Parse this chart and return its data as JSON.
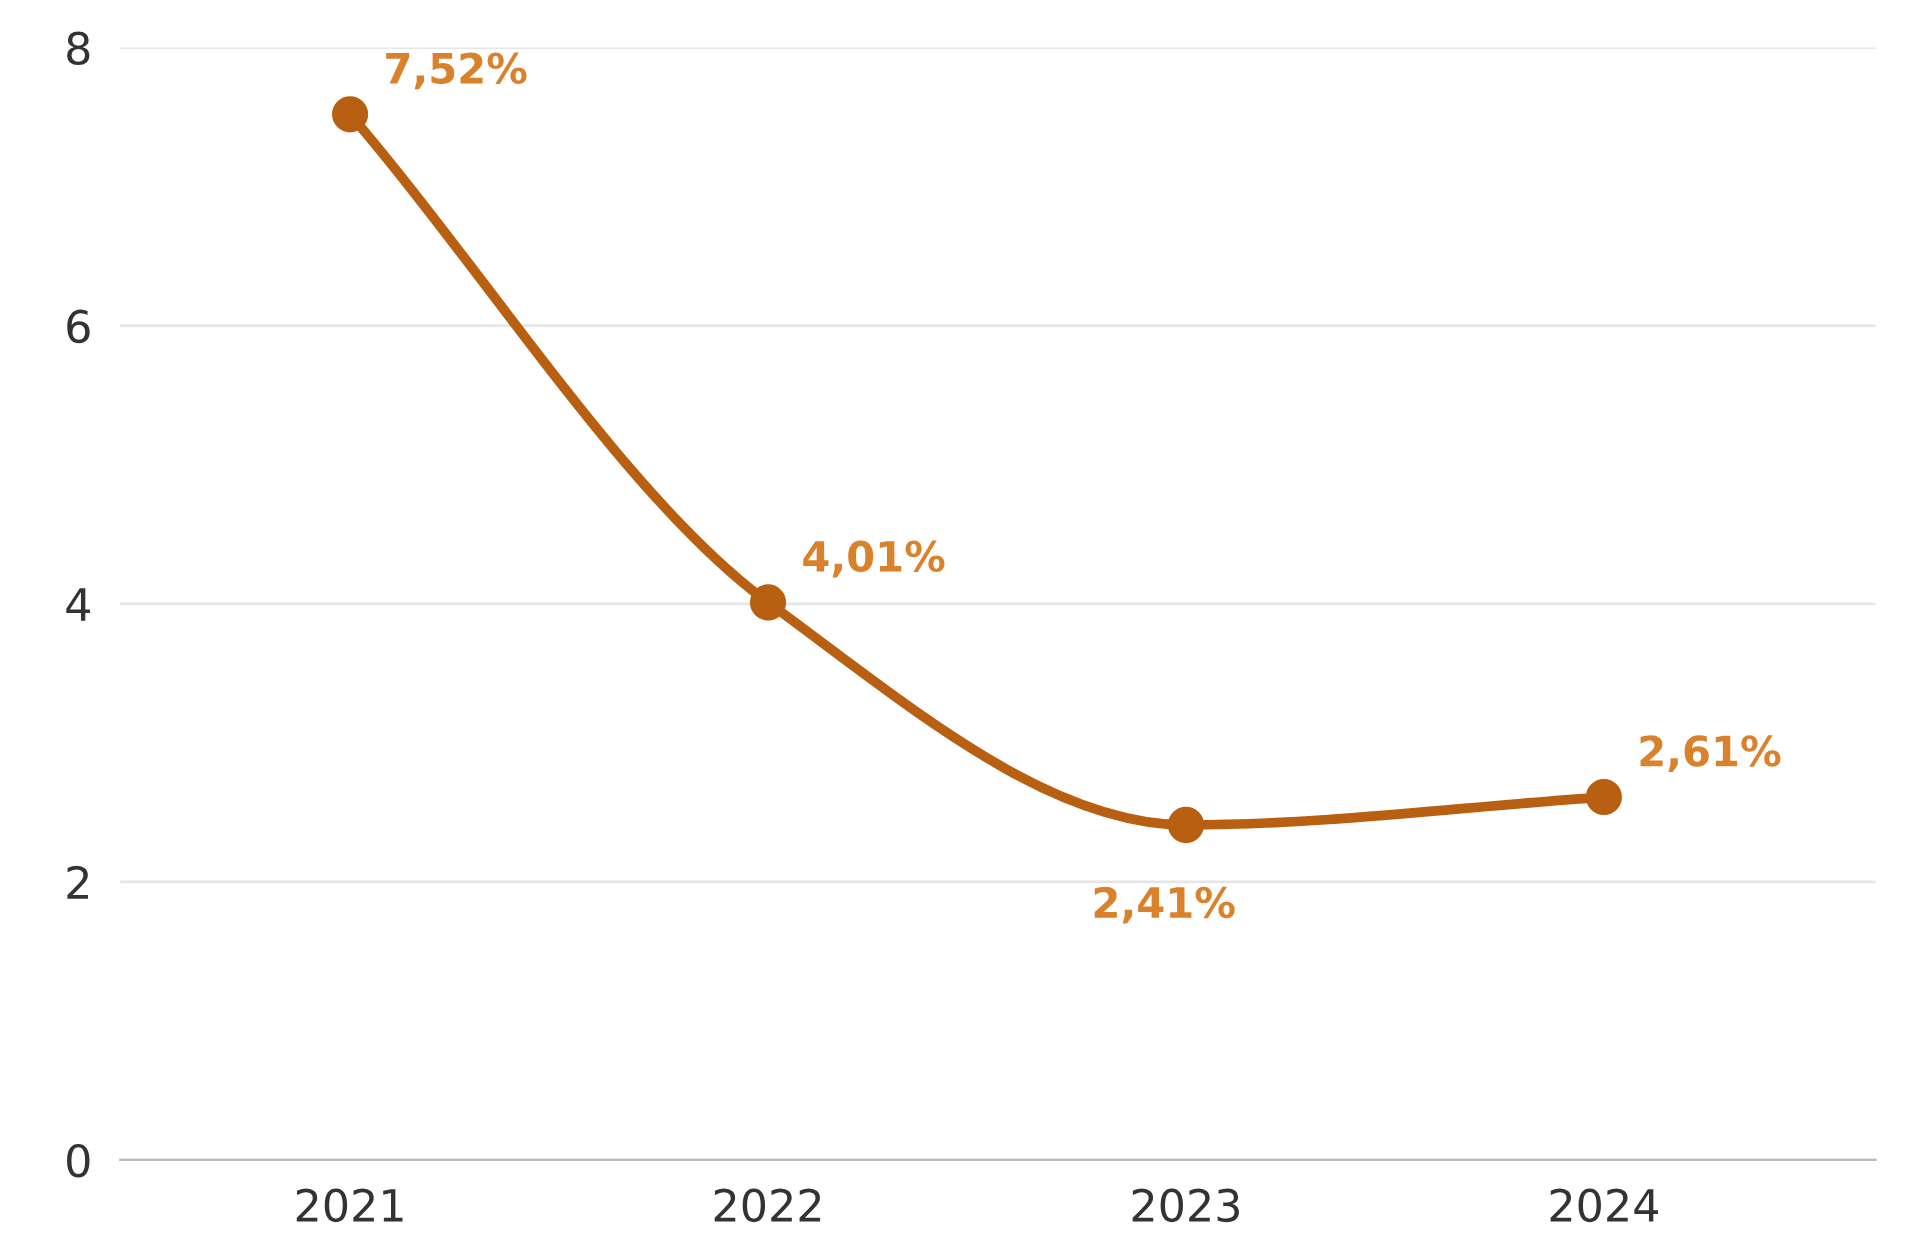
{
  "chart_data": {
    "type": "line",
    "categories": [
      "2021",
      "2022",
      "2023",
      "2024"
    ],
    "series": [
      {
        "color": "#b85f12",
        "values": [
          7.52,
          4.01,
          2.41,
          2.61
        ],
        "value_labels": [
          "7,52%",
          "4,01%",
          "2,41%",
          "2,61%"
        ]
      }
    ],
    "ylim": [
      0,
      8
    ],
    "yticks": [
      0,
      2,
      4,
      6,
      8
    ],
    "grid": "y",
    "marker": "circle",
    "line_style": "solid"
  }
}
